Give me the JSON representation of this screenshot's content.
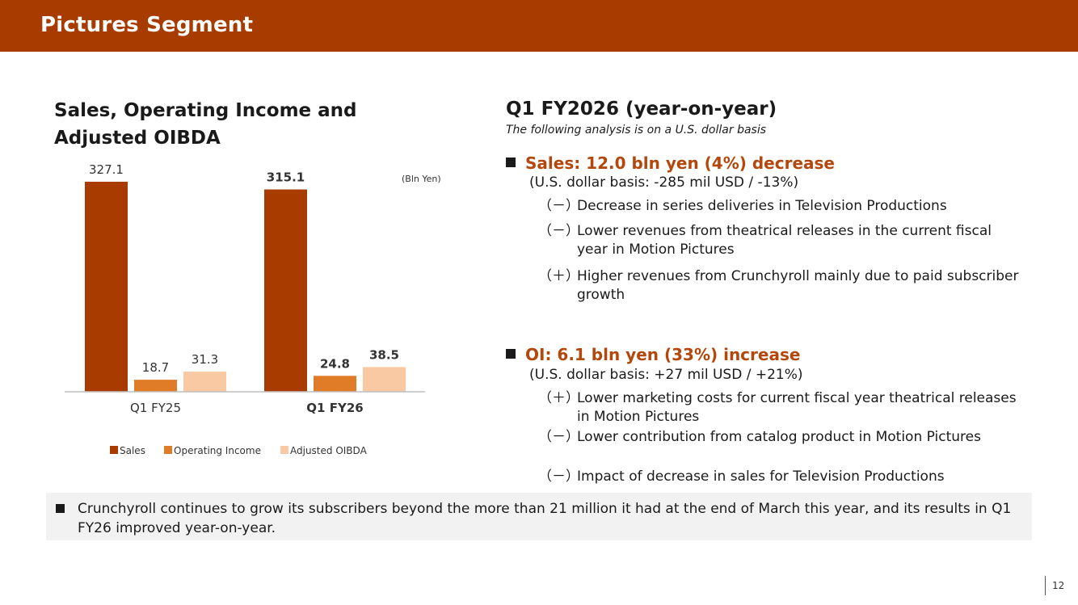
{
  "header": {
    "title": "Pictures Segment"
  },
  "left_panel": {
    "title": "Sales, Operating Income and Adjusted OIBDA"
  },
  "chart_data": {
    "type": "bar",
    "unit_label": "(Bln Yen)",
    "categories": [
      "Q1 FY25",
      "Q1 FY26"
    ],
    "bold_categories": [
      false,
      true
    ],
    "series": [
      {
        "name": "Sales",
        "values": [
          327.1,
          315.1
        ],
        "labels": [
          "327.1",
          "315.1"
        ],
        "color": "#a83c00"
      },
      {
        "name": "Operating Income",
        "values": [
          18.7,
          24.8
        ],
        "labels": [
          "18.7",
          "24.8"
        ],
        "color": "#e07b28"
      },
      {
        "name": "Adjusted OIBDA",
        "values": [
          31.3,
          38.5
        ],
        "labels": [
          "31.3",
          "38.5"
        ],
        "color": "#f8c9a2"
      }
    ],
    "legend_position": "bottom",
    "grid": false
  },
  "analysis": {
    "title": "Q1 FY2026 (year-on-year)",
    "subtitle": "The following analysis is on a U.S. dollar basis",
    "sales": {
      "heading": "Sales: 12.0 bln yen (4%) decrease",
      "basis": "(U.S. dollar basis: -285 mil USD / -13%)",
      "bullets": [
        {
          "sign": "（－）",
          "text": "Decrease in series deliveries in Television Productions"
        },
        {
          "sign": "（－）",
          "text": "Lower revenues from theatrical releases in the current fiscal year in Motion Pictures"
        },
        {
          "sign": "（＋）",
          "text": "Higher revenues from Crunchyroll mainly due to paid subscriber growth"
        }
      ]
    },
    "oi": {
      "heading": "OI: 6.1 bln yen (33%) increase",
      "basis": "(U.S. dollar basis: +27 mil USD / +21%)",
      "bullets": [
        {
          "sign": "（＋）",
          "text": "Lower marketing costs for current fiscal year theatrical releases in Motion Pictures"
        },
        {
          "sign": "（－）",
          "text": "Lower contribution from catalog product in Motion Pictures"
        },
        {
          "sign": "（－）",
          "text": "Impact of decrease in sales for Television Productions"
        }
      ]
    }
  },
  "note": {
    "text": "Crunchyroll continues to grow its subscribers beyond the more than 21 million it had at the end of March this year, and its results in Q1 FY26 improved year-on-year."
  },
  "page": {
    "number": "12"
  }
}
